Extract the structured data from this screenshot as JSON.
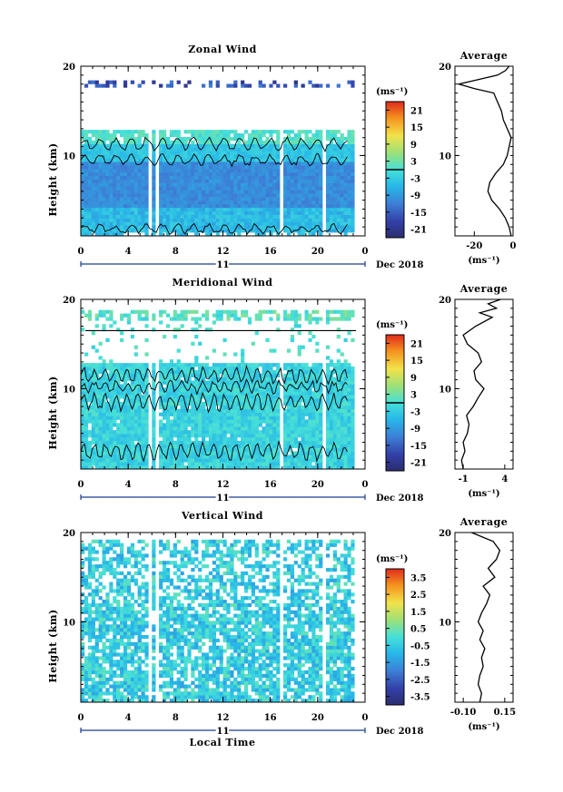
{
  "figure": {
    "xlabel": "Local Time",
    "date_label": "Dec 2018",
    "day_label": "11",
    "average_title": "Average",
    "units": "(ms⁻¹)",
    "units_axis": "(ms⁻¹)",
    "ylabel": "Height (km)"
  },
  "chart_data": [
    {
      "type": "heatmap",
      "panel": "zonal",
      "title": "Zonal Wind",
      "xlabel": "",
      "ylabel": "Height (km)",
      "x_ticks": [
        "0",
        "4",
        "8",
        "12",
        "16",
        "20",
        "0"
      ],
      "xlim": [
        0,
        24
      ],
      "y_ticks": [
        "20",
        "10"
      ],
      "ylim": [
        1,
        20
      ],
      "colorbar_ticks": [
        "21",
        "15",
        "9",
        "3",
        "-3",
        "-9",
        "-15",
        "-21"
      ],
      "colorbar_range": [
        -24,
        24
      ],
      "contour_level_line": 0,
      "profile": {
        "title": "Average",
        "xlim": [
          -30,
          0
        ],
        "x_ticks": [
          "-20",
          "0"
        ],
        "y_ticks": [
          "20",
          "10"
        ],
        "height": [
          1,
          2,
          3,
          4,
          5,
          6,
          7,
          8,
          9,
          10,
          11,
          12,
          13,
          14,
          15,
          16,
          17,
          17.5,
          18,
          18.5,
          19,
          19.5,
          20
        ],
        "value": [
          -1,
          -2,
          -4,
          -7,
          -11,
          -13,
          -12,
          -9,
          -5,
          -3,
          -2,
          -1,
          -3,
          -5,
          -6,
          -8,
          -10,
          -20,
          -28,
          -18,
          -8,
          -4,
          -2
        ]
      }
    },
    {
      "type": "heatmap",
      "panel": "meridional",
      "title": "Meridional Wind",
      "xlabel": "",
      "ylabel": "Height (km)",
      "x_ticks": [
        "0",
        "4",
        "8",
        "12",
        "16",
        "20",
        "0"
      ],
      "xlim": [
        0,
        24
      ],
      "y_ticks": [
        "20",
        "10"
      ],
      "ylim": [
        1,
        20
      ],
      "colorbar_ticks": [
        "21",
        "15",
        "9",
        "3",
        "-3",
        "-9",
        "-15",
        "-21"
      ],
      "colorbar_range": [
        -24,
        24
      ],
      "contour_level_line": 0,
      "profile": {
        "title": "Average",
        "xlim": [
          -2,
          5
        ],
        "x_ticks": [
          "-1",
          "4"
        ],
        "y_ticks": [
          "20",
          "10"
        ],
        "height": [
          1,
          2,
          3,
          4,
          5,
          6,
          7,
          8,
          9,
          10,
          11,
          12,
          13,
          14,
          15,
          16,
          17,
          18,
          18.5,
          19,
          19.5,
          20
        ],
        "value": [
          -1,
          -1.2,
          -0.8,
          -1,
          -0.5,
          -0.3,
          -0.6,
          0.2,
          0.8,
          1.5,
          0.5,
          0.3,
          1.2,
          0.8,
          -0.5,
          -1,
          0.5,
          2.5,
          1,
          3,
          2,
          3.5
        ]
      }
    },
    {
      "type": "heatmap",
      "panel": "vertical",
      "title": "Vertical Wind",
      "xlabel": "Local Time",
      "ylabel": "Height (km)",
      "x_ticks": [
        "0",
        "4",
        "8",
        "12",
        "16",
        "20",
        "0"
      ],
      "xlim": [
        0,
        24
      ],
      "y_ticks": [
        "20",
        "10"
      ],
      "ylim": [
        1,
        20
      ],
      "colorbar_ticks": [
        "3.5",
        "2.5",
        "1.5",
        "0.5",
        "-0.5",
        "-1.5",
        "-2.5",
        "-3.5"
      ],
      "colorbar_range": [
        -4,
        4
      ],
      "profile": {
        "title": "Average",
        "xlim": [
          -0.15,
          0.2
        ],
        "x_ticks": [
          "-0.10",
          "0.15"
        ],
        "y_ticks": [
          "20",
          "10"
        ],
        "height": [
          1,
          2,
          3,
          4,
          5,
          6,
          7,
          8,
          9,
          10,
          11,
          12,
          13,
          14,
          15,
          16,
          17,
          18,
          19,
          20
        ],
        "value": [
          0.0,
          0.01,
          -0.01,
          0.0,
          0.02,
          0.01,
          0.03,
          0.0,
          0.02,
          -0.01,
          0.01,
          0.04,
          0.06,
          0.02,
          0.09,
          0.05,
          0.1,
          0.12,
          0.08,
          -0.05
        ]
      }
    }
  ]
}
